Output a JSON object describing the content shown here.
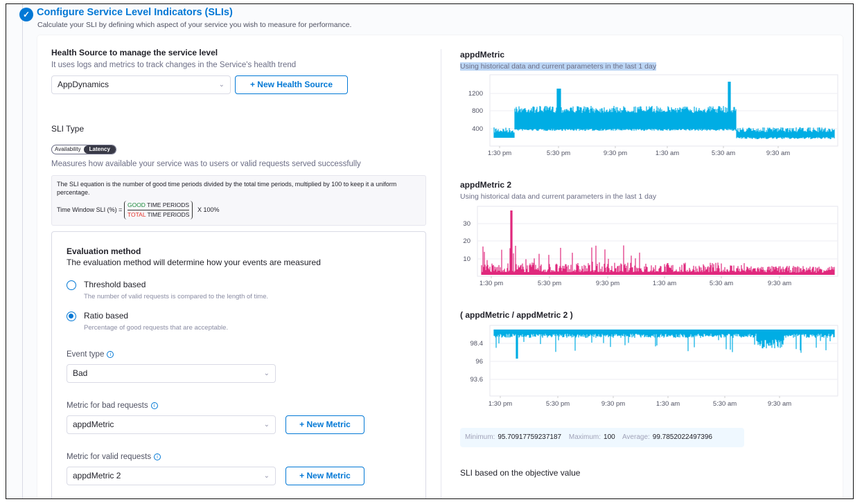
{
  "section": {
    "title": "Configure Service Level Indicators (SLIs)",
    "subtitle": "Calculate your SLI by defining which aspect of your service you wish to measure for performance."
  },
  "health_source": {
    "heading": "Health Source to manage the service level",
    "description": "It uses logs and metrics to track changes in the Service's health trend",
    "selected": "AppDynamics",
    "new_button": "+ New Health Source"
  },
  "sli_type": {
    "heading": "SLI Type",
    "options": [
      "Availability",
      "Latency"
    ],
    "active": "Latency",
    "description": "Measures how available your service was to users or valid requests served successfully"
  },
  "equation": {
    "text": "The SLI equation is the number of good time periods divided by the total time periods, multiplied by 100 to keep it a uniform percentage.",
    "lhs": "Time Window SLI (%) =",
    "good": "GOOD",
    "total": "TOTAL",
    "periods": "TIME PERIODS",
    "multiplier": "X 100%",
    "good_color": "#1b8a3a",
    "total_color": "#e5332a"
  },
  "evaluation": {
    "heading": "Evaluation method",
    "description": "The evaluation method will determine how your events are measured",
    "options": [
      {
        "label": "Threshold based",
        "help": "The number of valid requests is compared to the length of time.",
        "selected": false
      },
      {
        "label": "Ratio based",
        "help": "Percentage of good requests that are acceptable.",
        "selected": true
      }
    ],
    "event_type_label": "Event type",
    "event_type": "Bad",
    "bad_metric_label": "Metric for bad requests",
    "bad_metric": "appdMetric",
    "valid_metric_label": "Metric for valid requests",
    "valid_metric": "appdMetric 2",
    "new_metric_button": "+ New Metric"
  },
  "charts": [
    {
      "title": "appdMetric",
      "subtitle": "Using historical data and current parameters in the last 1 day",
      "color": "#00ade4",
      "y_ticks": [
        "1200",
        "800",
        "400"
      ],
      "x_ticks": [
        "1:30 pm",
        "5:30 pm",
        "9:30 pm",
        "1:30 am",
        "5:30 am",
        "9:30 am"
      ]
    },
    {
      "title": "appdMetric 2",
      "subtitle": "Using historical data and current parameters in the last 1 day",
      "color": "#e0287d",
      "y_ticks": [
        "30",
        "20",
        "10"
      ],
      "x_ticks": [
        "1:30 pm",
        "5:30 pm",
        "9:30 pm",
        "1:30 am",
        "5:30 am",
        "9:30 am"
      ]
    },
    {
      "title": "( appdMetric / appdMetric 2 )",
      "color": "#00ade4",
      "y_ticks": [
        "98.4",
        "96",
        "93.6"
      ],
      "x_ticks": [
        "1:30 pm",
        "5:30 pm",
        "9:30 pm",
        "1:30 am",
        "5:30 am",
        "9:30 am"
      ]
    }
  ],
  "stats": {
    "min_label": "Minimum:",
    "min": "95.70917759237187",
    "max_label": "Maximum:",
    "max": "100",
    "avg_label": "Average:",
    "avg": "99.7852022497396"
  },
  "objective_heading": "SLI based on the objective value"
}
